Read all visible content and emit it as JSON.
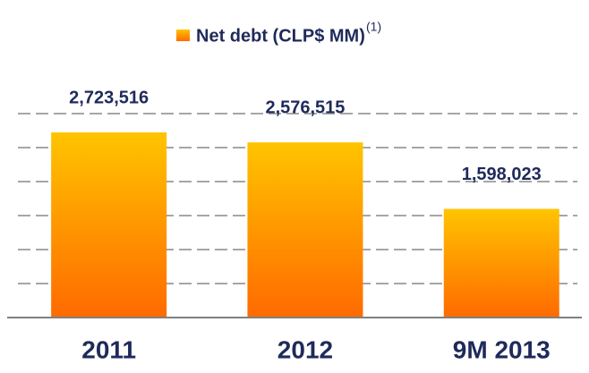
{
  "chart_data": {
    "type": "bar",
    "title": "Net debt (CLP$ MM)",
    "title_note": "(1)",
    "categories": [
      "2011",
      "2012",
      "9M 2013"
    ],
    "values": [
      2723516,
      2576515,
      1598023
    ],
    "value_labels": [
      "2,723,516",
      "2,576,515",
      "1,598,023"
    ],
    "color": "#ff9a00",
    "ylim": [
      0,
      3000000
    ],
    "yticks": [
      0,
      500000,
      1000000,
      1500000,
      2000000,
      2500000,
      3000000
    ],
    "grid": true
  }
}
